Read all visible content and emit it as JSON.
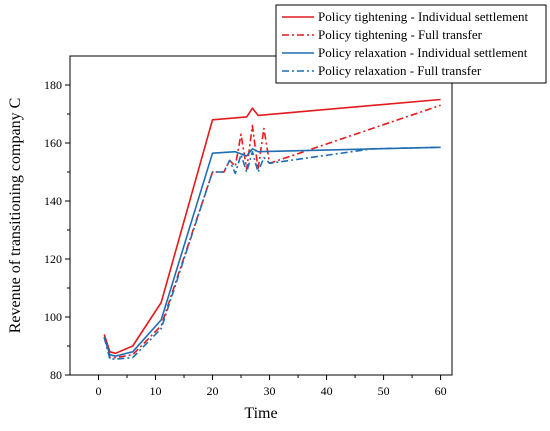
{
  "chart_data": {
    "type": "line",
    "title": "",
    "xlabel": "Time",
    "ylabel": "Revenue of transitioning company C",
    "xlim": [
      -5,
      62
    ],
    "ylim": [
      80,
      190
    ],
    "xticks": [
      0,
      10,
      20,
      30,
      40,
      50,
      60
    ],
    "yticks": [
      80,
      100,
      120,
      140,
      160,
      180
    ],
    "grid": false,
    "legend_position": "top-right",
    "series": [
      {
        "name": "Policy tightening - Individual settlement",
        "color": "#e41a1c",
        "dash": "solid",
        "x": [
          1,
          2,
          3,
          6,
          11,
          20,
          26,
          27,
          28,
          60
        ],
        "y": [
          94,
          88,
          87.5,
          90,
          105,
          168,
          169,
          172,
          169.5,
          175
        ]
      },
      {
        "name": "Policy tightening - Full transfer",
        "color": "#e41a1c",
        "dash": "dashdot",
        "x": [
          1,
          2,
          3,
          6,
          11,
          20,
          22,
          23,
          24,
          25,
          26,
          27,
          28,
          29,
          30,
          60
        ],
        "y": [
          93,
          86,
          86,
          87,
          97,
          150,
          150,
          154,
          152,
          163,
          151,
          166,
          151,
          165,
          153,
          173
        ]
      },
      {
        "name": "Policy relaxation - Individual settlement",
        "color": "#1f6eb3",
        "dash": "solid",
        "x": [
          1,
          2,
          3,
          6,
          11,
          20,
          24,
          26,
          27,
          28,
          60
        ],
        "y": [
          93,
          87,
          86.5,
          88,
          99,
          156.5,
          157,
          155.5,
          158,
          157,
          158.5
        ]
      },
      {
        "name": "Policy relaxation - Full transfer",
        "color": "#1f6eb3",
        "dash": "dashdot",
        "x": [
          1,
          2,
          3,
          6,
          11,
          20,
          22,
          23,
          24,
          25,
          26,
          27,
          28,
          29,
          30,
          48,
          60
        ],
        "y": [
          93,
          85.5,
          85.5,
          86,
          96,
          150,
          150,
          154,
          149.5,
          156,
          150,
          157,
          150,
          155,
          153,
          158,
          158.5
        ]
      }
    ]
  }
}
